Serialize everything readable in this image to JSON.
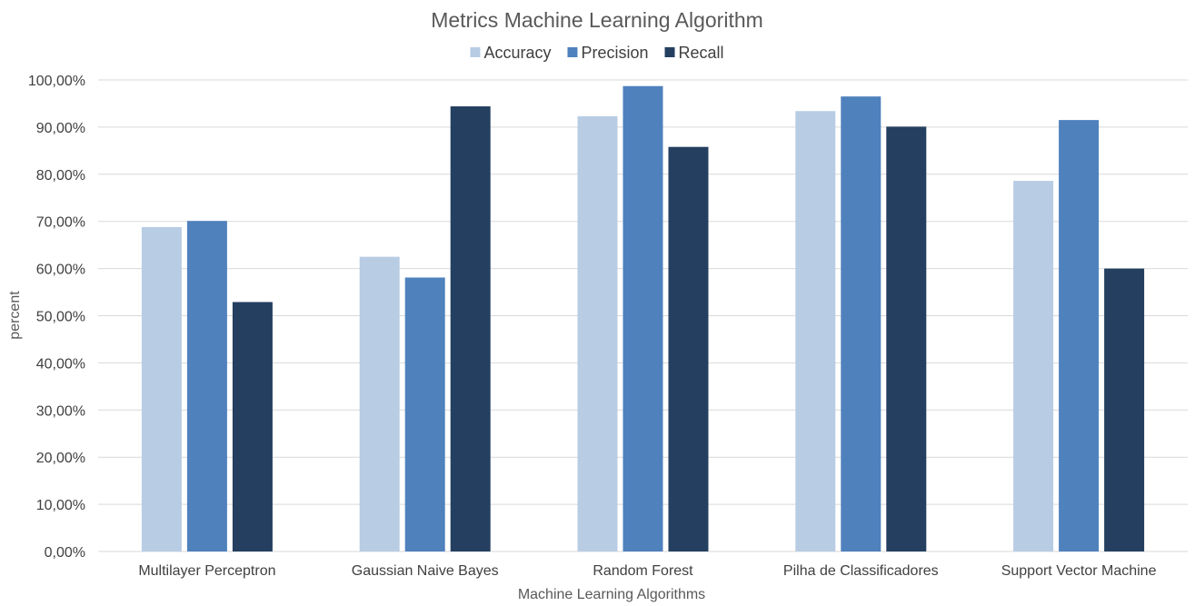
{
  "chart_data": {
    "type": "bar",
    "title": "Metrics Machine Learning Algorithm",
    "xlabel": "Machine Learning Algorithms",
    "ylabel": "percent",
    "ylim": [
      0,
      100
    ],
    "yticks": [
      0,
      10,
      20,
      30,
      40,
      50,
      60,
      70,
      80,
      90,
      100
    ],
    "ytick_labels": [
      "0,00%",
      "10,00%",
      "20,00%",
      "30,00%",
      "40,00%",
      "50,00%",
      "60,00%",
      "70,00%",
      "80,00%",
      "90,00%",
      "100,00%"
    ],
    "grid": true,
    "legend_position": "top",
    "categories": [
      "Multilayer Perceptron",
      "Gaussian Naive Bayes",
      "Random Forest",
      "Pilha de Classificadores",
      "Support Vector Machine"
    ],
    "series": [
      {
        "name": "Accuracy",
        "color": "#b8cce4",
        "values": [
          68.8,
          62.5,
          92.3,
          93.4,
          78.6
        ]
      },
      {
        "name": "Precision",
        "color": "#4f81bd",
        "values": [
          70.1,
          58.1,
          98.7,
          96.5,
          91.5
        ]
      },
      {
        "name": "Recall",
        "color": "#243f60",
        "values": [
          52.9,
          94.4,
          85.8,
          90.1,
          60.0
        ]
      }
    ]
  }
}
